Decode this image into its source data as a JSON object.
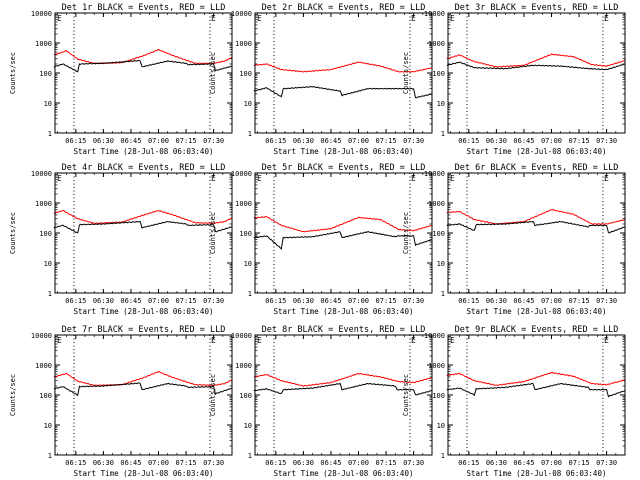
{
  "chart_data": [
    {
      "type": "line",
      "title": "Det 1r BLACK = Events, RED = LLD",
      "ylabel": "Counts/sec",
      "xlabel": "Start Time (28-Jul-08 06:03:40)",
      "yscale": "log",
      "ylim": [
        1,
        10000
      ],
      "xlim": [
        "06:03:40",
        "07:40"
      ],
      "ytick_labels": [
        "1",
        "10",
        "100",
        "1000",
        "10000"
      ],
      "xtick_labels": [
        "06:15",
        "06:30",
        "06:45",
        "07:00",
        "07:15",
        "07:30"
      ],
      "markers": {
        "vlines_dotted": [
          "06:14",
          "07:28"
        ],
        "corner_labels": [
          "E",
          "E"
        ]
      },
      "series": [
        {
          "color": "#ff0000",
          "x": [
            "06:03",
            "06:10",
            "06:16",
            "06:25",
            "06:40",
            "06:52",
            "07:00",
            "07:08",
            "07:20",
            "07:30",
            "07:36",
            "07:40"
          ],
          "y": [
            400,
            550,
            290,
            210,
            220,
            380,
            600,
            380,
            210,
            210,
            250,
            330
          ]
        },
        {
          "color": "#000000",
          "x": [
            "06:03",
            "06:08",
            "06:16",
            "06:17",
            "06:30",
            "06:50",
            "06:51",
            "07:05",
            "07:15",
            "07:16",
            "07:30",
            "07:31",
            "07:40"
          ],
          "y": [
            160,
            200,
            110,
            200,
            210,
            260,
            160,
            250,
            210,
            190,
            200,
            120,
            170
          ]
        }
      ]
    },
    {
      "type": "line",
      "title": "Det 2r BLACK = Events, RED = LLD",
      "ylabel": "Counts/sec",
      "xlabel": "Start Time (28-Jul-08 06:03:40)",
      "yscale": "log",
      "ylim": [
        1,
        10000
      ],
      "xlim": [
        "06:03:40",
        "07:40"
      ],
      "ytick_labels": [
        "1",
        "10",
        "100",
        "1000",
        "10000"
      ],
      "xtick_labels": [
        "06:15",
        "06:30",
        "06:45",
        "07:00",
        "07:15",
        "07:30"
      ],
      "markers": {
        "vlines_dotted": [
          "06:14",
          "07:28"
        ],
        "corner_labels": [
          "E",
          "E"
        ]
      },
      "series": [
        {
          "color": "#ff0000",
          "x": [
            "06:03",
            "06:10",
            "06:18",
            "06:30",
            "06:45",
            "07:00",
            "07:12",
            "07:22",
            "07:30",
            "07:40"
          ],
          "y": [
            180,
            200,
            130,
            110,
            130,
            230,
            170,
            110,
            110,
            150
          ]
        },
        {
          "color": "#000000",
          "x": [
            "06:03",
            "06:10",
            "06:18",
            "06:19",
            "06:35",
            "06:50",
            "06:51",
            "07:05",
            "07:20",
            "07:21",
            "07:30",
            "07:31",
            "07:40"
          ],
          "y": [
            25,
            32,
            16,
            30,
            35,
            25,
            18,
            30,
            30,
            30,
            30,
            15,
            20
          ]
        }
      ]
    },
    {
      "type": "line",
      "title": "Det 3r BLACK = Events, RED = LLD",
      "ylabel": "Counts/sec",
      "xlabel": "Start Time (28-Jul-08 06:03:40)",
      "yscale": "log",
      "ylim": [
        1,
        10000
      ],
      "xlim": [
        "06:03:40",
        "07:40"
      ],
      "ytick_labels": [
        "1",
        "10",
        "100",
        "1000",
        "10000"
      ],
      "xtick_labels": [
        "06:15",
        "06:30",
        "06:45",
        "07:00",
        "07:15",
        "07:30"
      ],
      "markers": {
        "vlines_dotted": [
          "06:14",
          "07:28"
        ],
        "corner_labels": [
          "E",
          "E"
        ]
      },
      "series": [
        {
          "color": "#ff0000",
          "x": [
            "06:03",
            "06:10",
            "06:18",
            "06:30",
            "06:45",
            "07:00",
            "07:12",
            "07:22",
            "07:30",
            "07:40"
          ],
          "y": [
            300,
            400,
            240,
            160,
            180,
            420,
            350,
            190,
            170,
            260
          ]
        },
        {
          "color": "#000000",
          "x": [
            "06:03",
            "06:10",
            "06:18",
            "06:35",
            "06:50",
            "07:05",
            "07:20",
            "07:30",
            "07:40"
          ],
          "y": [
            180,
            230,
            150,
            140,
            180,
            170,
            140,
            130,
            200
          ]
        }
      ]
    },
    {
      "type": "line",
      "title": "Det 4r BLACK = Events, RED = LLD",
      "ylabel": "Counts/sec",
      "xlabel": "Start Time (28-Jul-08 06:03:40)",
      "yscale": "log",
      "ylim": [
        1,
        10000
      ],
      "xlim": [
        "06:03:40",
        "07:40"
      ],
      "ytick_labels": [
        "1",
        "10",
        "100",
        "1000",
        "10000"
      ],
      "xtick_labels": [
        "06:15",
        "06:30",
        "06:45",
        "07:00",
        "07:15",
        "07:30"
      ],
      "markers": {
        "vlines_dotted": [
          "06:14",
          "07:28"
        ],
        "corner_labels": [
          "E",
          "E"
        ]
      },
      "series": [
        {
          "color": "#ff0000",
          "x": [
            "06:03",
            "06:08",
            "06:16",
            "06:25",
            "06:40",
            "06:52",
            "07:00",
            "07:08",
            "07:20",
            "07:30",
            "07:36",
            "07:40"
          ],
          "y": [
            450,
            560,
            300,
            210,
            230,
            400,
            560,
            400,
            220,
            210,
            240,
            320
          ]
        },
        {
          "color": "#000000",
          "x": [
            "06:03",
            "06:08",
            "06:16",
            "06:17",
            "06:30",
            "06:50",
            "06:51",
            "07:05",
            "07:15",
            "07:16",
            "07:30",
            "07:31",
            "07:40"
          ],
          "y": [
            150,
            180,
            100,
            190,
            200,
            240,
            150,
            240,
            200,
            180,
            190,
            110,
            160
          ]
        }
      ]
    },
    {
      "type": "line",
      "title": "Det 5r BLACK = Events, RED = LLD",
      "ylabel": "Counts/sec",
      "xlabel": "Start Time (28-Jul-08 06:03:40)",
      "yscale": "log",
      "ylim": [
        1,
        10000
      ],
      "xlim": [
        "06:03:40",
        "07:40"
      ],
      "ytick_labels": [
        "1",
        "10",
        "100",
        "1000",
        "10000"
      ],
      "xtick_labels": [
        "06:15",
        "06:30",
        "06:45",
        "07:00",
        "07:15",
        "07:30"
      ],
      "markers": {
        "vlines_dotted": [
          "06:14",
          "07:28"
        ],
        "corner_labels": [
          "E",
          "E"
        ]
      },
      "series": [
        {
          "color": "#ff0000",
          "x": [
            "06:03",
            "06:10",
            "06:18",
            "06:30",
            "06:45",
            "07:00",
            "07:12",
            "07:22",
            "07:30",
            "07:40"
          ],
          "y": [
            320,
            350,
            180,
            110,
            140,
            330,
            280,
            130,
            120,
            180
          ]
        },
        {
          "color": "#000000",
          "x": [
            "06:03",
            "06:10",
            "06:18",
            "06:19",
            "06:35",
            "06:50",
            "06:51",
            "07:05",
            "07:20",
            "07:21",
            "07:30",
            "07:31",
            "07:40"
          ],
          "y": [
            70,
            80,
            30,
            70,
            75,
            110,
            70,
            110,
            75,
            80,
            80,
            40,
            60
          ]
        }
      ]
    },
    {
      "type": "line",
      "title": "Det 6r BLACK = Events, RED = LLD",
      "ylabel": "Counts/sec",
      "xlabel": "Start Time (28-Jul-08 06:03:40)",
      "yscale": "log",
      "ylim": [
        1,
        10000
      ],
      "xlim": [
        "06:03:40",
        "07:40"
      ],
      "ytick_labels": [
        "1",
        "10",
        "100",
        "1000",
        "10000"
      ],
      "xtick_labels": [
        "06:15",
        "06:30",
        "06:45",
        "07:00",
        "07:15",
        "07:30"
      ],
      "markers": {
        "vlines_dotted": [
          "06:14",
          "07:28"
        ],
        "corner_labels": [
          "E",
          "E"
        ]
      },
      "series": [
        {
          "color": "#ff0000",
          "x": [
            "06:03",
            "06:10",
            "06:18",
            "06:30",
            "06:45",
            "07:00",
            "07:12",
            "07:22",
            "07:30",
            "07:40"
          ],
          "y": [
            480,
            520,
            280,
            200,
            240,
            600,
            420,
            200,
            200,
            280
          ]
        },
        {
          "color": "#000000",
          "x": [
            "06:03",
            "06:10",
            "06:18",
            "06:19",
            "06:35",
            "06:50",
            "06:51",
            "07:05",
            "07:20",
            "07:21",
            "07:30",
            "07:31",
            "07:40"
          ],
          "y": [
            180,
            200,
            120,
            190,
            200,
            240,
            180,
            240,
            160,
            180,
            180,
            100,
            160
          ]
        }
      ]
    },
    {
      "type": "line",
      "title": "Det 7r BLACK = Events, RED = LLD",
      "ylabel": "Counts/sec",
      "xlabel": "Start Time (28-Jul-08 06:03:40)",
      "yscale": "log",
      "ylim": [
        1,
        10000
      ],
      "xlim": [
        "06:03:40",
        "07:40"
      ],
      "ytick_labels": [
        "1",
        "10",
        "100",
        "1000",
        "10000"
      ],
      "xtick_labels": [
        "06:15",
        "06:30",
        "06:45",
        "07:00",
        "07:15",
        "07:30"
      ],
      "markers": {
        "vlines_dotted": [
          "06:14",
          "07:28"
        ],
        "corner_labels": [
          "E",
          "E"
        ]
      },
      "series": [
        {
          "color": "#ff0000",
          "x": [
            "06:03",
            "06:10",
            "06:16",
            "06:25",
            "06:40",
            "06:52",
            "07:00",
            "07:08",
            "07:20",
            "07:30",
            "07:36",
            "07:40"
          ],
          "y": [
            400,
            520,
            290,
            210,
            220,
            380,
            600,
            380,
            220,
            210,
            240,
            320
          ]
        },
        {
          "color": "#000000",
          "x": [
            "06:03",
            "06:08",
            "06:16",
            "06:17",
            "06:30",
            "06:50",
            "06:51",
            "07:05",
            "07:15",
            "07:16",
            "07:30",
            "07:31",
            "07:40"
          ],
          "y": [
            160,
            190,
            100,
            190,
            200,
            250,
            150,
            240,
            200,
            180,
            190,
            110,
            170
          ]
        }
      ]
    },
    {
      "type": "line",
      "title": "Det 8r BLACK = Events, RED = LLD",
      "ylabel": "Counts/sec",
      "xlabel": "Start Time (28-Jul-08 06:03:40)",
      "yscale": "log",
      "ylim": [
        1,
        10000
      ],
      "xlim": [
        "06:03:40",
        "07:40"
      ],
      "ytick_labels": [
        "1",
        "10",
        "100",
        "1000",
        "10000"
      ],
      "xtick_labels": [
        "06:15",
        "06:30",
        "06:45",
        "07:00",
        "07:15",
        "07:30"
      ],
      "markers": {
        "vlines_dotted": [
          "06:14",
          "07:28"
        ],
        "corner_labels": [
          "E",
          "E"
        ]
      },
      "series": [
        {
          "color": "#ff0000",
          "x": [
            "06:03",
            "06:10",
            "06:18",
            "06:30",
            "06:45",
            "07:00",
            "07:12",
            "07:22",
            "07:30",
            "07:40"
          ],
          "y": [
            400,
            480,
            300,
            200,
            260,
            520,
            400,
            280,
            260,
            380
          ]
        },
        {
          "color": "#000000",
          "x": [
            "06:03",
            "06:10",
            "06:18",
            "06:19",
            "06:35",
            "06:50",
            "06:51",
            "07:05",
            "07:20",
            "07:21",
            "07:30",
            "07:31",
            "07:40"
          ],
          "y": [
            140,
            160,
            110,
            150,
            170,
            240,
            150,
            240,
            200,
            150,
            150,
            100,
            140
          ]
        }
      ]
    },
    {
      "type": "line",
      "title": "Det 9r BLACK = Events, RED = LLD",
      "ylabel": "Counts/sec",
      "xlabel": "Start Time (28-Jul-08 06:03:40)",
      "yscale": "log",
      "ylim": [
        1,
        10000
      ],
      "xlim": [
        "06:03:40",
        "07:40"
      ],
      "ytick_labels": [
        "1",
        "10",
        "100",
        "1000",
        "10000"
      ],
      "xtick_labels": [
        "06:15",
        "06:30",
        "06:45",
        "07:00",
        "07:15",
        "07:30"
      ],
      "markers": {
        "vlines_dotted": [
          "06:14",
          "07:28"
        ],
        "corner_labels": [
          "E",
          "E"
        ]
      },
      "series": [
        {
          "color": "#ff0000",
          "x": [
            "06:03",
            "06:10",
            "06:18",
            "06:30",
            "06:45",
            "07:00",
            "07:12",
            "07:22",
            "07:30",
            "07:40"
          ],
          "y": [
            450,
            520,
            300,
            210,
            280,
            560,
            420,
            240,
            220,
            320
          ]
        },
        {
          "color": "#000000",
          "x": [
            "06:03",
            "06:10",
            "06:18",
            "06:19",
            "06:35",
            "06:50",
            "06:51",
            "07:05",
            "07:20",
            "07:21",
            "07:30",
            "07:31",
            "07:40"
          ],
          "y": [
            150,
            170,
            100,
            160,
            180,
            240,
            150,
            240,
            180,
            150,
            150,
            90,
            140
          ]
        }
      ]
    }
  ]
}
